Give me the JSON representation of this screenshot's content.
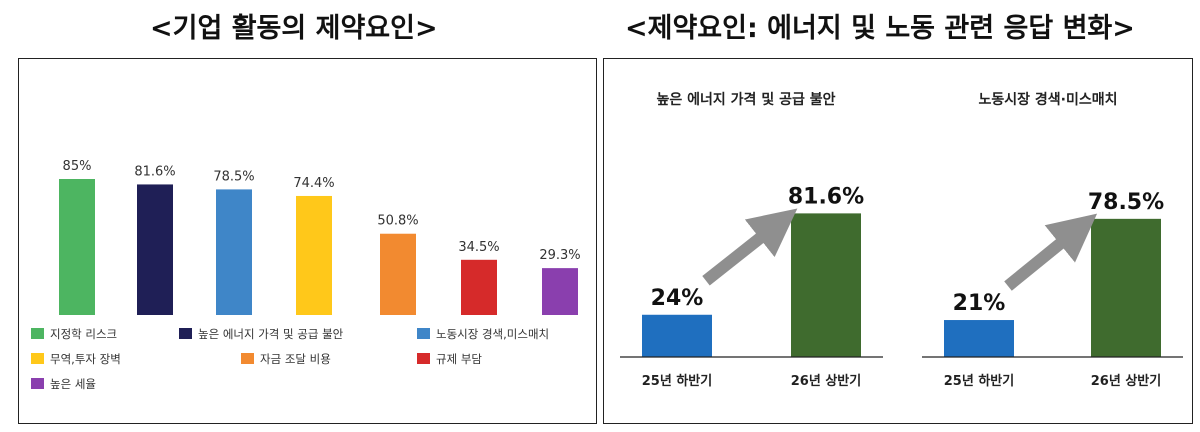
{
  "left_heading": "<기업 활동의 제약요인>",
  "right_heading": "<제약요인: 에너지 및 노동 관련 응답 변화>",
  "chart_data": [
    {
      "type": "bar",
      "categories": [
        "지정학 리스크",
        "높은 에너지 가격 및 공급 불안",
        "노동시장 경색,미스매치",
        "무역,투자 장벽",
        "자금 조달 비용",
        "규제 부담",
        "높은 세율"
      ],
      "values": [
        85,
        81.6,
        78.5,
        74.4,
        50.8,
        34.5,
        29.3
      ],
      "value_labels": [
        "85%",
        "81.6%",
        "78.5%",
        "74.4%",
        "50.8%",
        "34.5%",
        "29.3%"
      ],
      "colors": [
        "#4db561",
        "#1f1f56",
        "#3f86c8",
        "#ffc81a",
        "#f28a30",
        "#d62a2a",
        "#8a3fae"
      ],
      "legend": "bottom",
      "ylim": [
        0,
        100
      ],
      "grid": false
    },
    {
      "type": "bar",
      "title": "높은 에너지 가격 및 공급 불안",
      "categories": [
        "25년 하반기",
        "26년 상반기"
      ],
      "values": [
        24,
        81.6
      ],
      "value_labels": [
        "24%",
        "81.6%"
      ],
      "colors": [
        "#1f6fbf",
        "#3f6b2e"
      ],
      "annotation": "arrow",
      "ylim": [
        0,
        100
      ]
    },
    {
      "type": "bar",
      "title": "노동시장 경색·미스매치",
      "categories": [
        "25년 하반기",
        "26년 상반기"
      ],
      "values": [
        21,
        78.5
      ],
      "value_labels": [
        "21%",
        "78.5%"
      ],
      "colors": [
        "#1f6fbf",
        "#3f6b2e"
      ],
      "annotation": "arrow",
      "ylim": [
        0,
        100
      ]
    }
  ]
}
